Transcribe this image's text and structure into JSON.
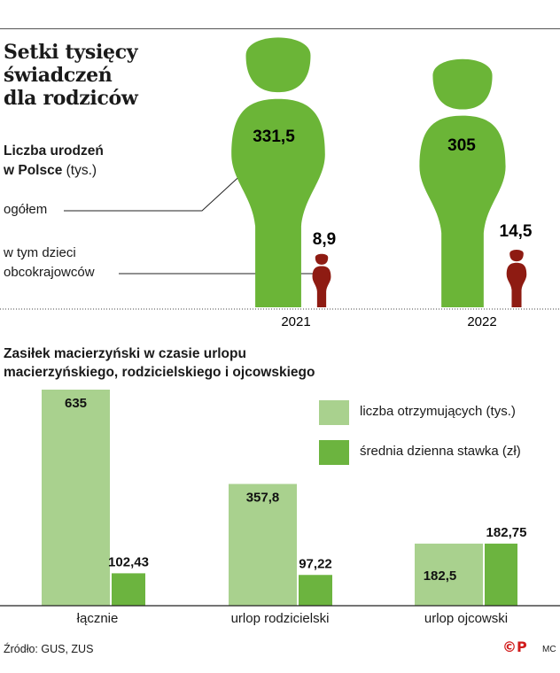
{
  "top": {
    "title_lines": [
      "Setki tysięcy",
      "świadczeń",
      "dla rodziców"
    ],
    "subtitle_bold_1": "Liczba urodzeń",
    "subtitle_bold_2": "w Polsce",
    "subtitle_unit": " (tys.)",
    "label_total": "ogółem",
    "label_foreign_1": "w tym dzieci",
    "label_foreign_2": "obcokrajowców"
  },
  "bottom": {
    "title_line_1": "Zasiłek macierzyński w czasie urlopu",
    "title_line_2": "macierzyńskiego, rodzicielskiego i ojcowskiego"
  },
  "footer": {
    "source": "Źródło: GUS, ZUS",
    "logo_text": "©P",
    "credit": "MC"
  },
  "colors": {
    "green_figure": "#6bb537",
    "red_figure": "#8e1b12",
    "light_green": "#a9d18e",
    "dark_green": "#6cb43f"
  },
  "chart_data": [
    {
      "type": "pictogram",
      "categories": [
        "2021",
        "2022"
      ],
      "series": [
        {
          "name": "ogółem",
          "values": [
            331.5,
            305
          ],
          "labels": [
            "331,5",
            "305"
          ]
        },
        {
          "name": "w tym dzieci obcokrajowców",
          "values": [
            8.9,
            14.5
          ],
          "labels": [
            "8,9",
            "14,5"
          ]
        }
      ]
    },
    {
      "type": "bar",
      "categories": [
        "łącznie",
        "urlop rodzicielski",
        "urlop ojcowski"
      ],
      "series": [
        {
          "name": "liczba otrzymujących (tys.)",
          "values": [
            635,
            357.8,
            182.5
          ],
          "labels": [
            "635",
            "357,8",
            "182,5"
          ]
        },
        {
          "name": "średnia dzienna stawka (zł)",
          "values": [
            102.43,
            97.22,
            182.75
          ],
          "labels": [
            "102,43",
            "97,22",
            "182,75"
          ]
        }
      ],
      "legend": "top-right",
      "ylim": [
        0,
        635
      ]
    }
  ]
}
